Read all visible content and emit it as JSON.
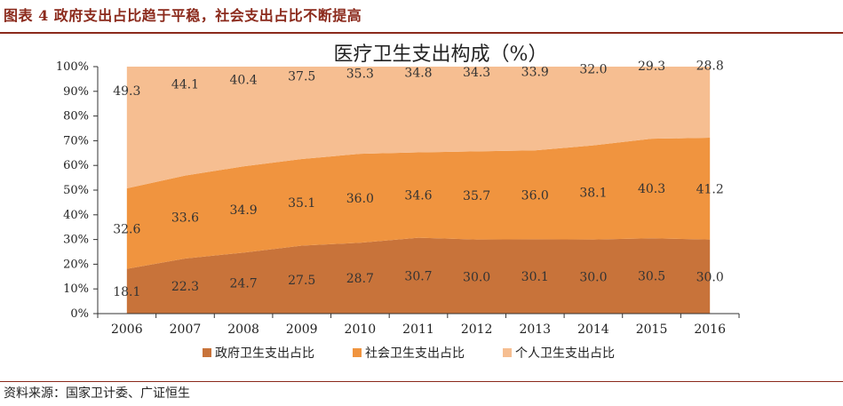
{
  "figure_caption": "图表 4 政府支出占比趋于平稳，社会支出占比不断提高",
  "source_text": "资料来源：国家卫计委、广证恒生",
  "colors": {
    "government": "#c8733a",
    "social": "#f0943f",
    "personal": "#f6be91",
    "accent": "#8b2a1c"
  },
  "chart_data": {
    "type": "area",
    "title": "医疗卫生支出构成（%）",
    "xlabel": "",
    "ylabel": "",
    "ylim": [
      0,
      100
    ],
    "y_ticks": [
      "0%",
      "10%",
      "20%",
      "30%",
      "40%",
      "50%",
      "60%",
      "70%",
      "80%",
      "90%",
      "100%"
    ],
    "categories": [
      "2006",
      "2007",
      "2008",
      "2009",
      "2010",
      "2011",
      "2012",
      "2013",
      "2014",
      "2015",
      "2016"
    ],
    "stacked": true,
    "legend_position": "bottom",
    "series": [
      {
        "name": "政府卫生支出占比",
        "values": [
          18.1,
          22.3,
          24.7,
          27.5,
          28.7,
          30.7,
          30.0,
          30.1,
          30.0,
          30.5,
          30.0
        ]
      },
      {
        "name": "社会卫生支出占比",
        "values": [
          32.6,
          33.6,
          34.9,
          35.1,
          36.0,
          34.6,
          35.7,
          36.0,
          38.1,
          40.3,
          41.2
        ]
      },
      {
        "name": "个人卫生支出占比",
        "values": [
          49.3,
          44.1,
          40.4,
          37.5,
          35.3,
          34.8,
          34.3,
          33.9,
          32.0,
          29.3,
          28.8
        ]
      }
    ]
  }
}
